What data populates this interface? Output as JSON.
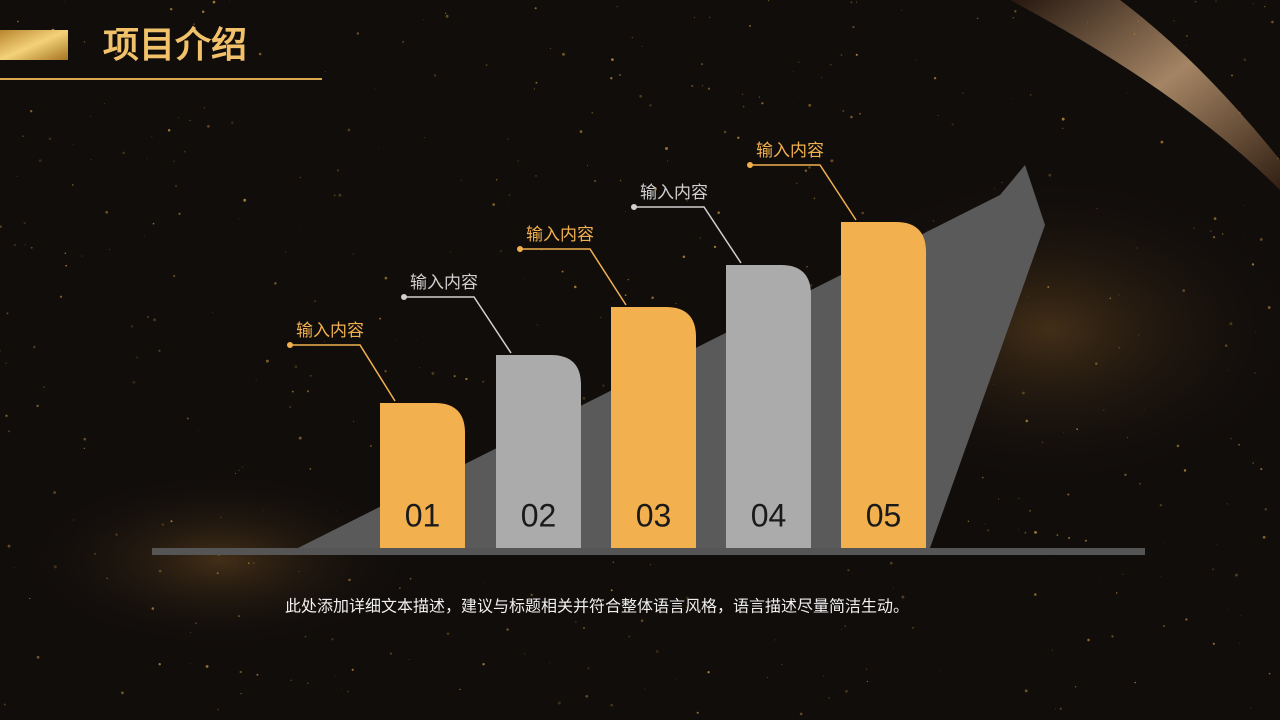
{
  "header": {
    "title": "项目介绍"
  },
  "items": [
    {
      "number": "01",
      "label": "输入内容"
    },
    {
      "number": "02",
      "label": "输入内容"
    },
    {
      "number": "03",
      "label": "输入内容"
    },
    {
      "number": "04",
      "label": "输入内容"
    },
    {
      "number": "05",
      "label": "输入内容"
    }
  ],
  "description": "此处添加详细文本描述，建议与标题相关并符合整体语言风格，语言描述尽量简洁生动。"
}
